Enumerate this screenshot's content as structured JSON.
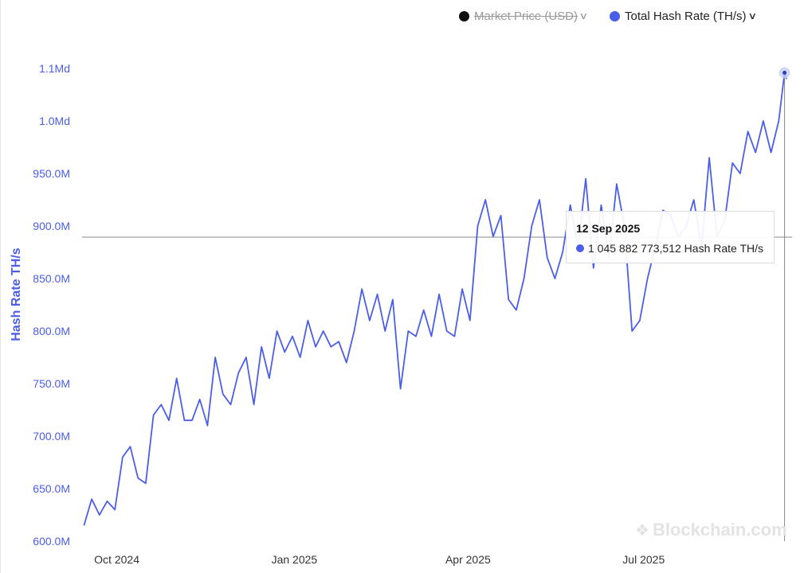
{
  "legend": {
    "price": {
      "label": "Market Price (USD)",
      "color": "#111111",
      "enabled": false
    },
    "hash": {
      "label": "Total Hash Rate (TH/s)",
      "color": "#4a5ee8",
      "enabled": true
    },
    "chevron": "chevron-down-icon"
  },
  "tooltip": {
    "date": "12 Sep 2025",
    "value": "1 045 882 773,512",
    "unit": "Hash Rate TH/s"
  },
  "watermark": "Blockchain.com",
  "chart_data": {
    "type": "line",
    "title": "",
    "xlabel": "",
    "ylabel": "Hash Rate TH/s",
    "ylim": [
      600000000,
      1100000000
    ],
    "yticks": [
      600000000,
      650000000,
      700000000,
      750000000,
      800000000,
      850000000,
      900000000,
      950000000,
      1000000000,
      1050000000
    ],
    "ytick_labels": [
      "600.0M",
      "650.0M",
      "700.0M",
      "750.0M",
      "800.0M",
      "850.0M",
      "900.0M",
      "950.0M",
      "1.0Md",
      "1.1Md"
    ],
    "xlim": [
      "2024-09-13",
      "2025-09-13"
    ],
    "xticks": [
      "2024-10-01",
      "2025-01-01",
      "2025-04-01",
      "2025-07-01"
    ],
    "xtick_labels": [
      "Oct 2024",
      "Jan 2025",
      "Apr 2025",
      "Jul 2025"
    ],
    "grid": false,
    "legend_position": "top-right",
    "crosshair": {
      "x": "2025-09-12",
      "y": 1045882773.512
    },
    "series": [
      {
        "name": "Total Hash Rate (TH/s)",
        "color": "#4a5ee8",
        "x": [
          "2024-09-14",
          "2024-09-18",
          "2024-09-22",
          "2024-09-26",
          "2024-09-30",
          "2024-10-04",
          "2024-10-08",
          "2024-10-12",
          "2024-10-16",
          "2024-10-20",
          "2024-10-24",
          "2024-10-28",
          "2024-11-01",
          "2024-11-05",
          "2024-11-09",
          "2024-11-13",
          "2024-11-17",
          "2024-11-21",
          "2024-11-25",
          "2024-11-29",
          "2024-12-03",
          "2024-12-07",
          "2024-12-11",
          "2024-12-15",
          "2024-12-19",
          "2024-12-23",
          "2024-12-27",
          "2024-12-31",
          "2025-01-04",
          "2025-01-08",
          "2025-01-12",
          "2025-01-16",
          "2025-01-20",
          "2025-01-24",
          "2025-01-28",
          "2025-02-01",
          "2025-02-05",
          "2025-02-09",
          "2025-02-13",
          "2025-02-17",
          "2025-02-21",
          "2025-02-25",
          "2025-03-01",
          "2025-03-05",
          "2025-03-09",
          "2025-03-13",
          "2025-03-17",
          "2025-03-21",
          "2025-03-25",
          "2025-03-29",
          "2025-04-02",
          "2025-04-06",
          "2025-04-10",
          "2025-04-14",
          "2025-04-18",
          "2025-04-22",
          "2025-04-26",
          "2025-04-30",
          "2025-05-04",
          "2025-05-08",
          "2025-05-12",
          "2025-05-16",
          "2025-05-20",
          "2025-05-24",
          "2025-05-28",
          "2025-06-01",
          "2025-06-05",
          "2025-06-09",
          "2025-06-13",
          "2025-06-17",
          "2025-06-21",
          "2025-06-25",
          "2025-06-29",
          "2025-07-03",
          "2025-07-07",
          "2025-07-11",
          "2025-07-15",
          "2025-07-19",
          "2025-07-23",
          "2025-07-27",
          "2025-07-31",
          "2025-08-04",
          "2025-08-08",
          "2025-08-12",
          "2025-08-16",
          "2025-08-20",
          "2025-08-24",
          "2025-08-28",
          "2025-09-01",
          "2025-09-05",
          "2025-09-09",
          "2025-09-12",
          "2025-09-13"
        ],
        "values": [
          615000000,
          640000000,
          625000000,
          638000000,
          630000000,
          680000000,
          690000000,
          660000000,
          655000000,
          720000000,
          730000000,
          715000000,
          755000000,
          715000000,
          715000000,
          735000000,
          710000000,
          775000000,
          740000000,
          730000000,
          760000000,
          775000000,
          730000000,
          785000000,
          755000000,
          800000000,
          780000000,
          795000000,
          775000000,
          810000000,
          785000000,
          800000000,
          785000000,
          790000000,
          770000000,
          800000000,
          840000000,
          810000000,
          835000000,
          800000000,
          830000000,
          745000000,
          800000000,
          795000000,
          820000000,
          795000000,
          835000000,
          800000000,
          795000000,
          840000000,
          810000000,
          900000000,
          925000000,
          890000000,
          910000000,
          830000000,
          820000000,
          850000000,
          900000000,
          925000000,
          870000000,
          850000000,
          875000000,
          920000000,
          880000000,
          945000000,
          860000000,
          920000000,
          870000000,
          940000000,
          900000000,
          800000000,
          810000000,
          850000000,
          880000000,
          915000000,
          910000000,
          890000000,
          900000000,
          925000000,
          880000000,
          965000000,
          890000000,
          905000000,
          960000000,
          950000000,
          990000000,
          970000000,
          1000000000,
          970000000,
          1000000000,
          1045882773,
          1040000000
        ]
      }
    ]
  }
}
